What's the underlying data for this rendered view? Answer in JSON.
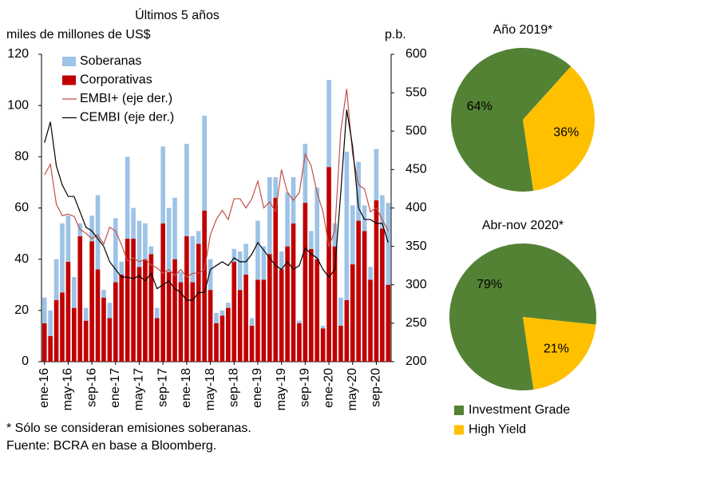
{
  "chart_data": [
    {
      "type": "combo",
      "title": "Últimos 5 años",
      "y_label": "miles de millones de US$",
      "y2_label": "p.b.",
      "categories": [
        "ene-16",
        null,
        null,
        null,
        "may-16",
        null,
        null,
        null,
        "sep-16",
        null,
        null,
        null,
        "ene-17",
        null,
        null,
        null,
        "may-17",
        null,
        null,
        null,
        "sep-17",
        null,
        null,
        null,
        "ene-18",
        null,
        null,
        null,
        "may-18",
        null,
        null,
        null,
        "sep-18",
        null,
        null,
        null,
        "ene-19",
        null,
        null,
        null,
        "may-19",
        null,
        null,
        null,
        "sep-19",
        null,
        null,
        null,
        "ene-20",
        null,
        null,
        null,
        "may-20",
        null,
        null,
        null,
        "sep-20",
        null,
        null
      ],
      "series": [
        {
          "name": "Soberanas",
          "type": "bar",
          "color": "#9dc3e6",
          "values": [
            10,
            10,
            16,
            27,
            18,
            12,
            5,
            5,
            10,
            29,
            3,
            6,
            25,
            5,
            32,
            12,
            18,
            14,
            3,
            4,
            30,
            25,
            24,
            4,
            36,
            18,
            5,
            37,
            12,
            4,
            2,
            2,
            5,
            15,
            12,
            3,
            23,
            13,
            30,
            8,
            7,
            21,
            18,
            1,
            23,
            7,
            28,
            1,
            34,
            9,
            11,
            58,
            23,
            23,
            10,
            5,
            20,
            13,
            32
          ]
        },
        {
          "name": "Corporativas",
          "type": "bar",
          "color": "#c00000",
          "values": [
            15,
            10,
            24,
            27,
            39,
            21,
            49,
            16,
            47,
            36,
            25,
            17,
            31,
            34,
            48,
            48,
            37,
            40,
            42,
            17,
            54,
            35,
            40,
            31,
            49,
            31,
            46,
            59,
            28,
            15,
            18,
            21,
            39,
            28,
            34,
            14,
            32,
            32,
            42,
            64,
            36,
            45,
            54,
            15,
            62,
            44,
            40,
            13,
            76,
            45,
            14,
            24,
            38,
            55,
            51,
            32,
            63,
            52,
            30
          ]
        },
        {
          "name": "EMBI+ (eje der.)",
          "type": "line",
          "axis": "y2",
          "color": "#c0504d",
          "values": [
            443,
            457,
            405,
            390,
            392,
            389,
            372,
            367,
            360,
            365,
            353,
            375,
            370,
            352,
            331,
            335,
            330,
            333,
            326,
            322,
            315,
            320,
            312,
            320,
            310,
            315,
            315,
            320,
            365,
            385,
            397,
            385,
            412,
            412,
            400,
            412,
            435,
            400,
            408,
            395,
            450,
            420,
            410,
            420,
            470,
            455,
            420,
            395,
            350,
            370,
            500,
            555,
            470,
            430,
            425,
            395,
            400,
            385,
            370
          ]
        },
        {
          "name": "CEMBI (eje der.)",
          "type": "line",
          "axis": "y2",
          "color": "#000000",
          "values": [
            485,
            512,
            455,
            430,
            415,
            415,
            395,
            375,
            370,
            360,
            350,
            330,
            320,
            310,
            310,
            308,
            312,
            305,
            315,
            295,
            300,
            305,
            295,
            290,
            280,
            280,
            290,
            290,
            320,
            325,
            330,
            325,
            335,
            330,
            330,
            340,
            355,
            345,
            335,
            325,
            320,
            330,
            320,
            325,
            348,
            340,
            335,
            320,
            310,
            320,
            420,
            528,
            480,
            400,
            385,
            385,
            380,
            380,
            355
          ]
        }
      ],
      "ylim": [
        0,
        120
      ],
      "yticks": [
        0,
        20,
        40,
        60,
        80,
        100,
        120
      ],
      "y2lim": [
        200,
        600
      ],
      "y2ticks": [
        200,
        250,
        300,
        350,
        400,
        450,
        500,
        550,
        600
      ],
      "grid": false,
      "legend": "top-left"
    },
    {
      "type": "pie",
      "categories": [
        "Investment Grade",
        "High Yield"
      ],
      "colors": [
        "#548235",
        "#ffc000"
      ],
      "pies": [
        {
          "title": "Año 2019*",
          "values": [
            64,
            36
          ],
          "value_labels": [
            "64%",
            "36%"
          ]
        },
        {
          "title": "Abr-nov 2020*",
          "values": [
            79,
            21
          ],
          "value_labels": [
            "79%",
            "21%"
          ]
        }
      ],
      "legend": "bottom"
    }
  ],
  "footnotes": [
    "* Sólo se consideran emisiones soberanas.",
    "Fuente: BCRA en base a Bloomberg."
  ]
}
